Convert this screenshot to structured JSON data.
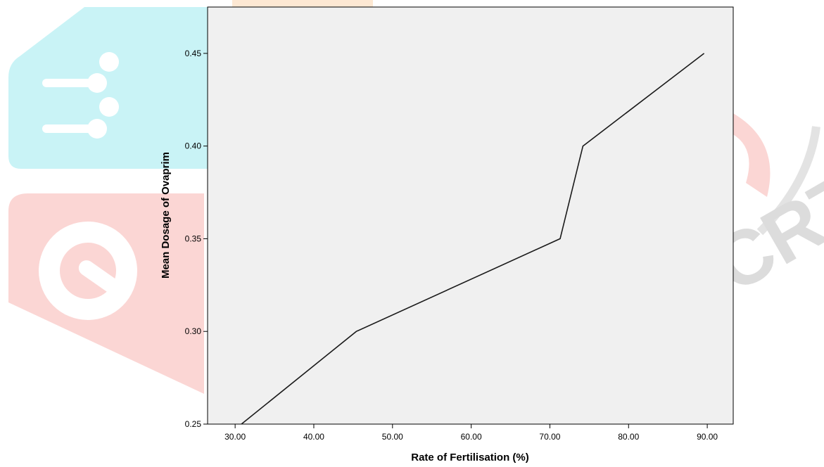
{
  "colors": {
    "page_background": "#ffffff",
    "plot_background": "#f0f0f0",
    "line": "#1a1a1a",
    "watermark_cyan": "#c9f3f6",
    "watermark_red": "#fbd6d4",
    "watermark_orange": "#fde8d3"
  },
  "watermark": {
    "description_icons": [
      "circuit-hand-icon",
      "gear-icon"
    ],
    "text": "IJCRT"
  },
  "chart_data": {
    "type": "line",
    "title": "",
    "xlabel": "Rate of Fertilisation (%)",
    "ylabel": "Mean Dosage of Ovaprim",
    "xlim": [
      26.5,
      93.3
    ],
    "ylim": [
      0.25,
      0.475
    ],
    "grid": false,
    "legend": "none",
    "xticks": [
      30,
      40,
      50,
      60,
      70,
      80,
      90
    ],
    "xtick_labels": [
      "30.00",
      "40.00",
      "50.00",
      "60.00",
      "70.00",
      "80.00",
      "90.00"
    ],
    "yticks": [
      0.25,
      0.3,
      0.35,
      0.4,
      0.45
    ],
    "ytick_labels": [
      "0.25",
      "0.30",
      "0.35",
      "0.40",
      "0.45"
    ],
    "series": [
      {
        "x": [
          30.8,
          45.4,
          71.3,
          74.2,
          89.6
        ],
        "y": [
          0.25,
          0.3,
          0.35,
          0.4,
          0.45
        ]
      }
    ]
  }
}
